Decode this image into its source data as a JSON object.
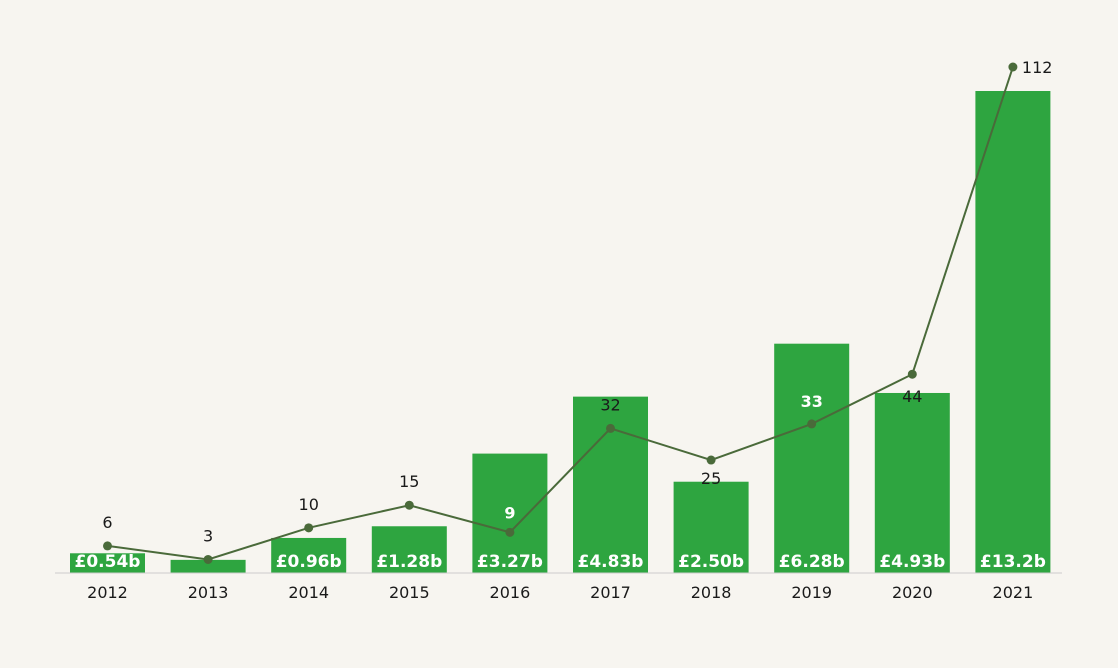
{
  "chart_data": {
    "type": "bar",
    "title": "",
    "xlabel": "",
    "ylabel": "",
    "categories": [
      "2012",
      "2013",
      "2014",
      "2015",
      "2016",
      "2017",
      "2018",
      "2019",
      "2020",
      "2021"
    ],
    "series": [
      {
        "type": "bar",
        "values": [
          0.54,
          0.36,
          0.96,
          1.28,
          3.27,
          4.83,
          2.5,
          6.28,
          4.93,
          13.2
        ],
        "value_labels": [
          "£0.54b",
          "",
          "£0.96b",
          "£1.28b",
          "£3.27b",
          "£4.83b",
          "£2.50b",
          "£6.28b",
          "£4.93b",
          "£13.2b"
        ],
        "color": "#2ea540"
      },
      {
        "type": "line",
        "values": [
          6,
          3,
          10,
          15,
          9,
          32,
          25,
          33,
          44,
          112
        ],
        "value_labels": [
          "6",
          "3",
          "10",
          "15",
          "9",
          "32",
          "25",
          "33",
          "44",
          "112"
        ],
        "color": "#4a6a3a",
        "label_colors": [
          "#1a1a1a",
          "#1a1a1a",
          "#1a1a1a",
          "#1a1a1a",
          "#ffffff",
          "#1a1a1a",
          "#1a1a1a",
          "#ffffff",
          "#1a1a1a",
          "#1a1a1a"
        ]
      }
    ],
    "bar_ylim": [
      0,
      14
    ],
    "line_ylim": [
      0,
      120
    ],
    "grid": false,
    "legend": "none",
    "baseline_color": "#cccccc"
  }
}
